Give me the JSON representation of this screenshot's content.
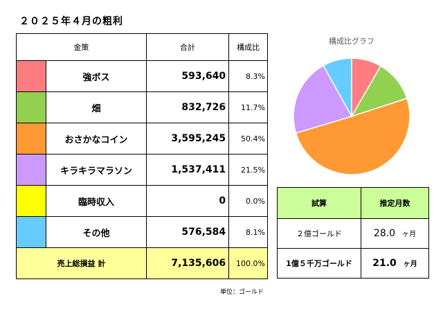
{
  "title": "２０２５年４月の粗利",
  "table": {
    "headers": [
      "金策",
      "合計",
      "構成比"
    ],
    "rows": [
      {
        "name": "強ボス",
        "amount": "593,640",
        "ratio": "8.3%",
        "color": "#ff7c80"
      },
      {
        "name": "畑",
        "amount": "832,726",
        "ratio": "11.7%",
        "color": "#92d050"
      },
      {
        "name": "おさかなコイン",
        "amount": "3,595,245",
        "ratio": "50.4%",
        "color": "#ff9933"
      },
      {
        "name": "キラキラマラソン",
        "amount": "1,537,411",
        "ratio": "21.5%",
        "color": "#cc99ff"
      },
      {
        "name": "臨時収入",
        "amount": "0",
        "ratio": "0.0%",
        "color": "#ffff00"
      },
      {
        "name": "その他",
        "amount": "576,584",
        "ratio": "8.1%",
        "color": "#66ccff"
      }
    ],
    "total": {
      "label": "売上総損益 計",
      "amount": "7,135,606",
      "ratio": "100.0%"
    }
  },
  "unit_note": "単位：ゴールド",
  "side": {
    "headers": [
      "試算",
      "推定月数"
    ],
    "rows": [
      {
        "label": "２億ゴールド",
        "value": "28.0",
        "unit": "ヶ月"
      },
      {
        "label": "1億５千万ゴールド",
        "value": "21.0",
        "unit": "ヶ月"
      }
    ]
  },
  "chart_data": {
    "type": "pie",
    "title": "構成比グラフ",
    "categories": [
      "強ボス",
      "畑",
      "おさかなコイン",
      "キラキラマラソン",
      "臨時収入",
      "その他"
    ],
    "values": [
      593640,
      832726,
      3595245,
      1537411,
      0,
      576584
    ],
    "colors": [
      "#ff7c80",
      "#92d050",
      "#ff9933",
      "#cc99ff",
      "#ffff00",
      "#66ccff"
    ]
  }
}
